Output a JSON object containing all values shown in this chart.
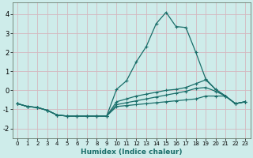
{
  "xlabel": "Humidex (Indice chaleur)",
  "xlim": [
    -0.5,
    23.5
  ],
  "ylim": [
    -2.5,
    4.6
  ],
  "yticks": [
    -2,
    -1,
    0,
    1,
    2,
    3,
    4
  ],
  "xticks": [
    0,
    1,
    2,
    3,
    4,
    5,
    6,
    7,
    8,
    9,
    10,
    11,
    12,
    13,
    14,
    15,
    16,
    17,
    18,
    19,
    20,
    21,
    22,
    23
  ],
  "bg_color": "#ceecea",
  "grid_color": "#d4b8c0",
  "line_color": "#1a6e6a",
  "curves": [
    {
      "x": [
        0,
        1,
        2,
        3,
        4,
        5,
        6,
        7,
        8,
        9,
        10,
        11,
        12,
        13,
        14,
        15,
        16,
        17,
        18,
        19,
        20,
        21,
        22,
        23
      ],
      "y": [
        -0.7,
        -0.85,
        -0.9,
        -1.05,
        -1.3,
        -1.35,
        -1.35,
        -1.35,
        -1.35,
        -1.35,
        0.05,
        0.5,
        1.5,
        2.3,
        3.5,
        4.1,
        3.35,
        3.3,
        2.0,
        0.6,
        0.05,
        -0.3,
        -0.7,
        -0.6
      ]
    },
    {
      "x": [
        0,
        1,
        2,
        3,
        4,
        5,
        6,
        7,
        8,
        9,
        10,
        11,
        12,
        13,
        14,
        15,
        16,
        17,
        18,
        19,
        20,
        21,
        22,
        23
      ],
      "y": [
        -0.7,
        -0.85,
        -0.9,
        -1.05,
        -1.3,
        -1.35,
        -1.35,
        -1.35,
        -1.35,
        -1.35,
        -0.6,
        -0.45,
        -0.3,
        -0.2,
        -0.1,
        0.0,
        0.05,
        0.15,
        0.35,
        0.55,
        0.05,
        -0.3,
        -0.7,
        -0.6
      ]
    },
    {
      "x": [
        0,
        1,
        2,
        3,
        4,
        5,
        6,
        7,
        8,
        9,
        10,
        11,
        12,
        13,
        14,
        15,
        16,
        17,
        18,
        19,
        20,
        21,
        22,
        23
      ],
      "y": [
        -0.7,
        -0.85,
        -0.9,
        -1.05,
        -1.3,
        -1.35,
        -1.35,
        -1.35,
        -1.35,
        -1.35,
        -0.75,
        -0.65,
        -0.55,
        -0.45,
        -0.35,
        -0.25,
        -0.15,
        -0.05,
        0.1,
        0.15,
        -0.05,
        -0.3,
        -0.7,
        -0.6
      ]
    },
    {
      "x": [
        0,
        1,
        2,
        3,
        4,
        5,
        6,
        7,
        8,
        9,
        10,
        11,
        12,
        13,
        14,
        15,
        16,
        17,
        18,
        19,
        20,
        21,
        22,
        23
      ],
      "y": [
        -0.7,
        -0.85,
        -0.9,
        -1.05,
        -1.3,
        -1.35,
        -1.35,
        -1.35,
        -1.35,
        -1.35,
        -0.85,
        -0.8,
        -0.75,
        -0.7,
        -0.65,
        -0.6,
        -0.55,
        -0.5,
        -0.45,
        -0.3,
        -0.3,
        -0.3,
        -0.7,
        -0.6
      ]
    }
  ]
}
